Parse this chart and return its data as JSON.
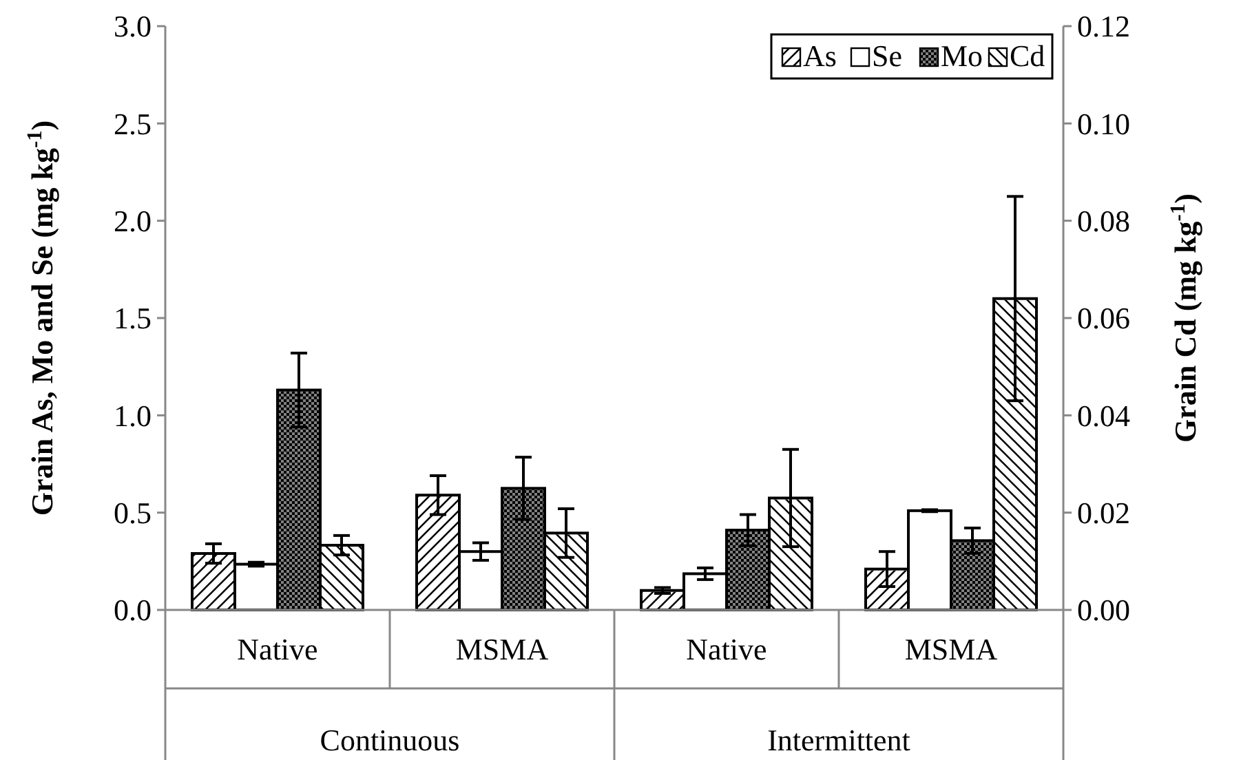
{
  "chart_data": {
    "type": "bar",
    "ylabel": "Grain As, Mo and Se (mg kg$^{-1}$)",
    "y2label": "Grain Cd (mg kg$^{-1}$)",
    "categories": [
      "Native",
      "MSMA",
      "Native",
      "MSMA"
    ],
    "annotations": [
      "Continuous",
      "Intermittent"
    ],
    "ylim": [
      0,
      3
    ],
    "yticks": [
      {
        "value": 0,
        "label": "0.0"
      },
      {
        "value": 0.5,
        "label": "0.5"
      },
      {
        "value": 1,
        "label": "1.0"
      },
      {
        "value": 1.5,
        "label": "1.5"
      },
      {
        "value": 2,
        "label": "2.0"
      },
      {
        "value": 2.5,
        "label": "2.5"
      },
      {
        "value": 3,
        "label": "3.0"
      }
    ],
    "y2lim": [
      0,
      0.12
    ],
    "y2ticks": [
      {
        "value": 0,
        "label": "0.00"
      },
      {
        "value": 0.02,
        "label": "0.02"
      },
      {
        "value": 0.04,
        "label": "0.04"
      },
      {
        "value": 0.06,
        "label": "0.06"
      },
      {
        "value": 0.08,
        "label": "0.08"
      },
      {
        "value": 0.1,
        "label": "0.10"
      },
      {
        "value": 0.12,
        "label": "0.12"
      }
    ],
    "legend": "top right",
    "grid": false,
    "series": [
      {
        "name": "As",
        "color": "#ffffff",
        "values": [
          0.29,
          0.59,
          0.1,
          0.21
        ],
        "errors": [
          0.05,
          0.1,
          0.015,
          0.09
        ]
      },
      {
        "name": "Se",
        "color": "#ffffff",
        "values": [
          0.235,
          0.3,
          0.186,
          0.51
        ],
        "errors": [
          0.01,
          0.045,
          0.03,
          0.005
        ]
      },
      {
        "name": "Mo",
        "color": "#808080",
        "values": [
          1.13,
          0.625,
          0.41,
          0.356
        ],
        "errors": [
          0.19,
          0.16,
          0.08,
          0.065
        ]
      },
      {
        "name": "Cd",
        "color": "#ffffff",
        "axis": "y2",
        "values": [
          0.0133,
          0.0158,
          0.023,
          0.064
        ],
        "errors": [
          0.002,
          0.005,
          0.01,
          0.021
        ]
      }
    ]
  }
}
